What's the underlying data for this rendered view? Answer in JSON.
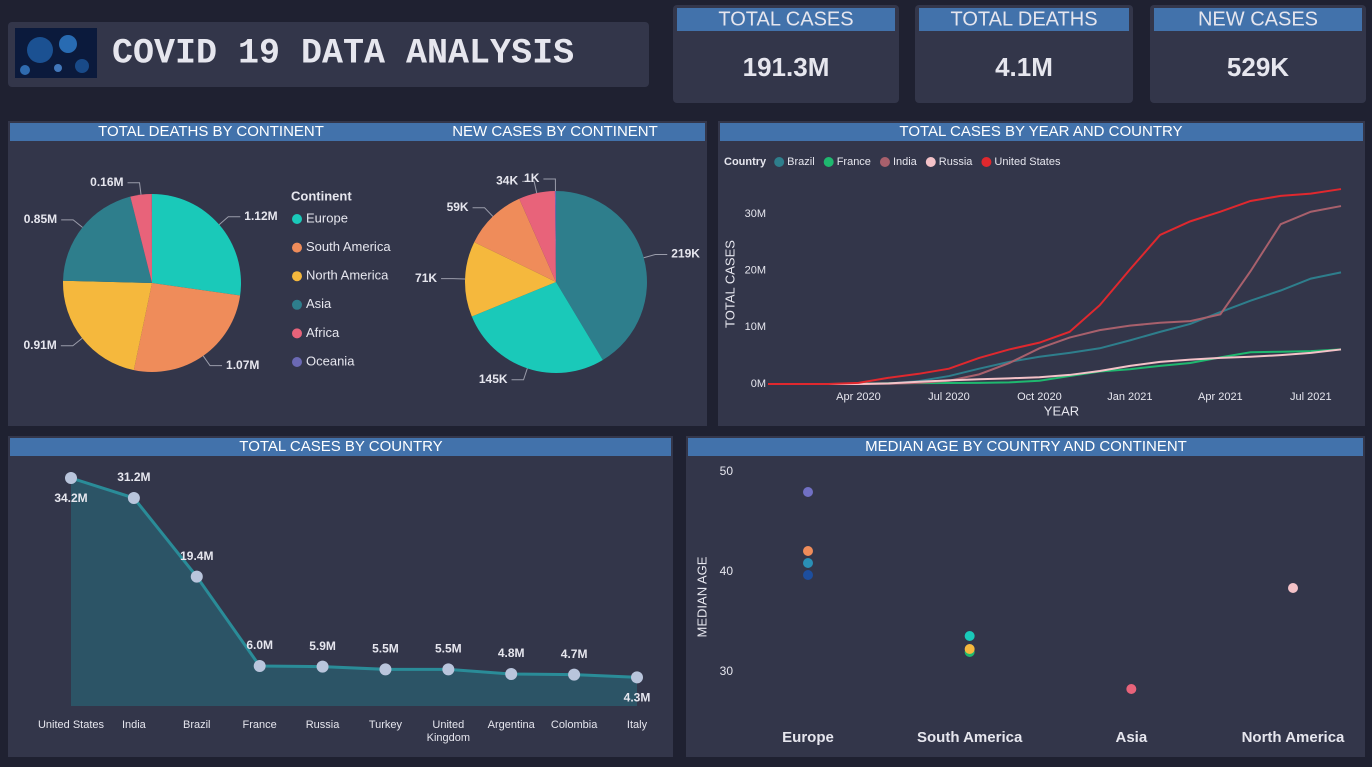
{
  "header": {
    "title": "COVID 19 DATA ANALYSIS"
  },
  "cards": [
    {
      "label": "TOTAL CASES",
      "value": "191.3M"
    },
    {
      "label": "TOTAL DEATHS",
      "value": "4.1M"
    },
    {
      "label": "NEW CASES",
      "value": "529K"
    }
  ],
  "chart_data": [
    {
      "type": "pie",
      "title": "TOTAL DEATHS BY CONTINENT",
      "legend_title": "Continent",
      "categories": [
        "Europe",
        "South America",
        "North America",
        "Asia",
        "Africa",
        "Oceania"
      ],
      "values": [
        1120000,
        1070000,
        910000,
        850000,
        160000,
        1000
      ],
      "value_labels": [
        "1.12M",
        "1.07M",
        "0.91M",
        "0.85M",
        "0.16M",
        null
      ],
      "colors": [
        "#1ac9b9",
        "#ef8c5a",
        "#f5b83d",
        "#2e7e8c",
        "#e8637a",
        "#6b69b4"
      ]
    },
    {
      "type": "pie",
      "title": "NEW CASES BY CONTINENT",
      "categories": [
        "Asia",
        "Europe",
        "North America",
        "South America",
        "Africa",
        "Oceania"
      ],
      "values": [
        219000,
        145000,
        71000,
        59000,
        34000,
        1000
      ],
      "value_labels": [
        "219K",
        "145K",
        "71K",
        "59K",
        "34K",
        "1K"
      ],
      "colors": [
        "#2e7e8c",
        "#1ac9b9",
        "#f5b83d",
        "#ef8c5a",
        "#e8637a",
        "#6b69b4"
      ]
    },
    {
      "type": "line",
      "title": "TOTAL CASES BY YEAR AND COUNTRY",
      "legend_title": "Country",
      "x_label": "YEAR",
      "y_label": "TOTAL CASES",
      "categories": [
        null,
        null,
        null,
        "Apr 2020",
        null,
        null,
        "Jul 2020",
        null,
        null,
        "Oct 2020",
        null,
        null,
        "Jan 2021",
        null,
        null,
        "Apr 2021",
        null,
        null,
        "Jul 2021",
        null
      ],
      "series": [
        {
          "name": "Brazil",
          "color": "#2e7e8c",
          "values": [
            0,
            0,
            0,
            6000,
            90000,
            500000,
            1400000,
            2700000,
            3900000,
            4800000,
            5500000,
            6300000,
            7700000,
            9200000,
            10600000,
            12700000,
            14700000,
            16500000,
            18600000,
            19700000
          ]
        },
        {
          "name": "France",
          "color": "#1fb86f",
          "values": [
            0,
            0,
            0,
            50000,
            130000,
            150000,
            170000,
            190000,
            280000,
            580000,
            1400000,
            2200000,
            2600000,
            3200000,
            3700000,
            4700000,
            5600000,
            5700000,
            5800000,
            6100000
          ]
        },
        {
          "name": "India",
          "color": "#a8606c",
          "values": [
            0,
            0,
            0,
            2000,
            35000,
            190000,
            580000,
            1700000,
            3700000,
            6300000,
            8200000,
            9500000,
            10300000,
            10800000,
            11100000,
            12300000,
            19900000,
            28200000,
            30400000,
            31400000
          ]
        },
        {
          "name": "Russia",
          "color": "#f4c2c8",
          "values": [
            0,
            0,
            0,
            2000,
            100000,
            400000,
            650000,
            840000,
            1000000,
            1200000,
            1600000,
            2300000,
            3200000,
            3900000,
            4300000,
            4600000,
            4800000,
            5100000,
            5500000,
            6100000
          ]
        },
        {
          "name": "United States",
          "color": "#e0282e",
          "values": [
            0,
            0,
            100,
            200000,
            1100000,
            1800000,
            2700000,
            4600000,
            6100000,
            7300000,
            9200000,
            13900000,
            20200000,
            26300000,
            28700000,
            30400000,
            32300000,
            33200000,
            33600000,
            34400000
          ]
        }
      ],
      "ylim": [
        0,
        36000000
      ],
      "yticks": [
        {
          "value": 0,
          "label": "0M"
        },
        {
          "value": 10000000,
          "label": "10M"
        },
        {
          "value": 20000000,
          "label": "20M"
        },
        {
          "value": 30000000,
          "label": "30M"
        }
      ]
    },
    {
      "type": "area",
      "title": "TOTAL CASES BY COUNTRY",
      "categories": [
        "United States",
        "India",
        "Brazil",
        "France",
        "Russia",
        "Turkey",
        "United Kingdom",
        "Argentina",
        "Colombia",
        "Italy"
      ],
      "values": [
        34200000,
        31200000,
        19400000,
        6000000,
        5900000,
        5500000,
        5500000,
        4800000,
        4700000,
        4300000
      ],
      "value_labels": [
        "34.2M",
        "31.2M",
        "19.4M",
        "6.0M",
        "5.9M",
        "5.5M",
        "5.5M",
        "4.8M",
        "4.7M",
        "4.3M"
      ],
      "color": "#2a8c98",
      "fill": "#2c5466",
      "marker_color": "#b9c5dc"
    },
    {
      "type": "scatter",
      "title": "MEDIAN AGE BY COUNTRY AND CONTINENT",
      "y_label": "MEDIAN AGE",
      "categories": [
        "Europe",
        "South America",
        "Asia",
        "North America"
      ],
      "x": [
        "Europe",
        "Europe",
        "Europe",
        "Europe",
        "South America",
        "South America",
        "South America",
        "Asia",
        "North America"
      ],
      "y": [
        48.0,
        42.1,
        40.9,
        39.7,
        32.0,
        32.3,
        33.6,
        28.3,
        38.4
      ],
      "colors": [
        "#7170c4",
        "#ef8c5a",
        "#2a8fb5",
        "#1d4e9e",
        "#1fb86f",
        "#f5b83d",
        "#1ac9b9",
        "#e8637a",
        "#f4c2c8"
      ],
      "ylim": [
        27,
        51
      ],
      "yticks": [
        30,
        40,
        50
      ]
    }
  ]
}
